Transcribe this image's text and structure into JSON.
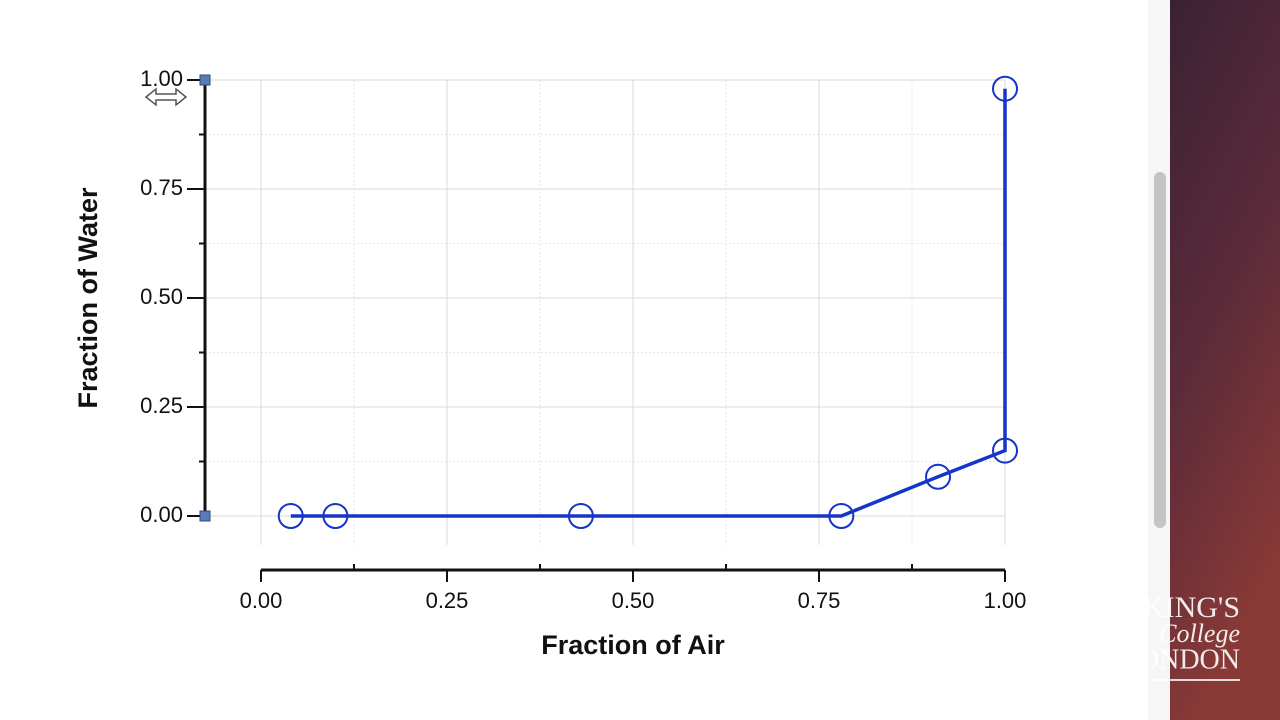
{
  "chart_data": {
    "type": "line",
    "x_label": "Fraction of Air",
    "y_label": "Fraction of Water",
    "x": [
      0.04,
      0.1,
      0.43,
      0.78,
      0.91,
      1.0,
      1.0
    ],
    "series": [
      {
        "color": "#1535c8",
        "values": [
          0,
          0,
          0,
          0,
          0.09,
          0.15,
          0.98
        ]
      }
    ],
    "xlim": [
      0,
      1
    ],
    "ylim": [
      0,
      1
    ],
    "xticks": [
      {
        "value": 0,
        "label": "0.00"
      },
      {
        "value": 0.25,
        "label": "0.25"
      },
      {
        "value": 0.5,
        "label": "0.50"
      },
      {
        "value": 0.75,
        "label": "0.75"
      },
      {
        "value": 1,
        "label": "1.00"
      }
    ],
    "yticks": [
      {
        "value": 0,
        "label": "0.00"
      },
      {
        "value": 0.25,
        "label": "0.25"
      },
      {
        "value": 0.5,
        "label": "0.50"
      },
      {
        "value": 0.75,
        "label": "0.75"
      },
      {
        "value": 1,
        "label": "1.00"
      }
    ],
    "x_minor_ticks": [
      0.125,
      0.375,
      0.625,
      0.875
    ],
    "y_minor_ticks": [
      0.125,
      0.375,
      0.625,
      0.875
    ],
    "grid": true
  },
  "logo": {
    "line1": "KING'S",
    "line2": "College",
    "line3": "LONDON"
  }
}
